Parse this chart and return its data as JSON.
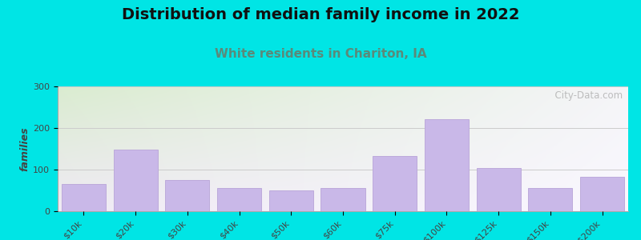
{
  "title": "Distribution of median family income in 2022",
  "subtitle": "White residents in Chariton, IA",
  "categories": [
    "$10k",
    "$20k",
    "$30k",
    "$40k",
    "$50k",
    "$60k",
    "$75k",
    "$100k",
    "$125k",
    "$150k",
    ">$200k"
  ],
  "values": [
    65,
    148,
    75,
    55,
    50,
    55,
    133,
    222,
    103,
    55,
    82
  ],
  "bar_color": "#c9b8e8",
  "bar_edge_color": "#b8a4d8",
  "background_outer": "#00e5e5",
  "bg_grad_topleft": "#daecd0",
  "bg_grad_bottomright": "#f0eaf5",
  "ylabel": "families",
  "ylim": [
    0,
    300
  ],
  "yticks": [
    0,
    100,
    200,
    300
  ],
  "title_fontsize": 14,
  "subtitle_fontsize": 11,
  "subtitle_color": "#5a8a7a",
  "watermark": "  City-Data.com",
  "tick_fontsize": 8,
  "ylabel_fontsize": 9
}
